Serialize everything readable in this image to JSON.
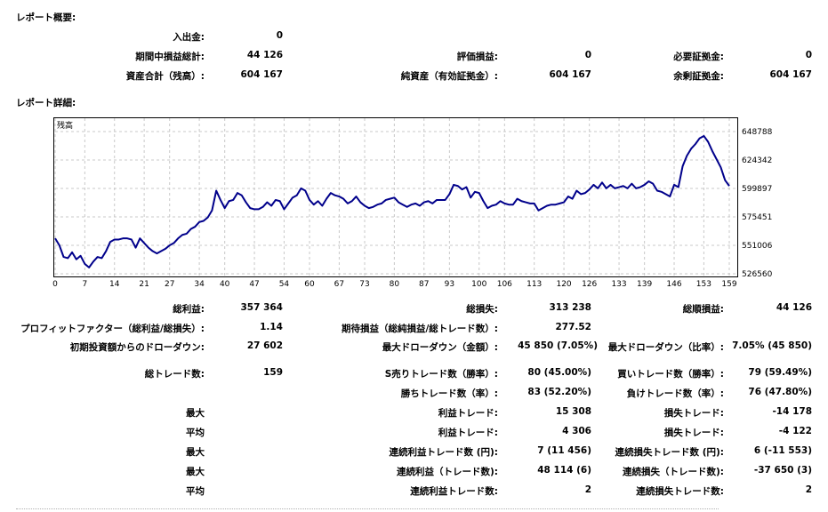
{
  "summary": {
    "title": "レポート概要:",
    "deposit_label": "入出金:",
    "deposit_value": "0",
    "period_pl_label": "期間中損益総計:",
    "period_pl_value": "44 126",
    "eval_pl_label": "評価損益:",
    "eval_pl_value": "0",
    "margin_req_label": "必要証拠金:",
    "margin_req_value": "0",
    "assets_label": "資産合計（残高）:",
    "assets_value": "604 167",
    "net_assets_label": "純資産（有効証拠金）:",
    "net_assets_value": "604 167",
    "free_margin_label": "余剰証拠金:",
    "free_margin_value": "604 167"
  },
  "details": {
    "title": "レポート詳細:"
  },
  "chart_data": {
    "type": "line",
    "title": "残高",
    "x_ticks": [
      "0",
      "7",
      "14",
      "21",
      "27",
      "34",
      "40",
      "47",
      "54",
      "60",
      "67",
      "73",
      "80",
      "87",
      "93",
      "100",
      "106",
      "113",
      "120",
      "126",
      "133",
      "139",
      "146",
      "153",
      "159"
    ],
    "y_ticks": [
      "648788",
      "624342",
      "599897",
      "575451",
      "551006",
      "526560"
    ],
    "ylim": [
      526560,
      648788
    ],
    "xlim": [
      0,
      160
    ],
    "grid": true,
    "line_color": "#00008b",
    "series": [
      {
        "values": [
          557000,
          551000,
          541000,
          540000,
          545000,
          539000,
          542000,
          535000,
          532000,
          537000,
          541000,
          540000,
          546000,
          554000,
          556000,
          556000,
          557000,
          557000,
          556000,
          549000,
          557000,
          553000,
          549000,
          546000,
          544000,
          546000,
          548000,
          551000,
          553000,
          557000,
          560000,
          561000,
          565000,
          567000,
          571000,
          572000,
          575000,
          581000,
          598000,
          590000,
          583000,
          589000,
          590000,
          596000,
          594000,
          588000,
          583000,
          582000,
          582000,
          584000,
          588000,
          585000,
          590000,
          589000,
          582000,
          587000,
          592000,
          594000,
          600000,
          598000,
          590000,
          586000,
          589000,
          585000,
          591000,
          596000,
          594000,
          593000,
          591000,
          587000,
          589000,
          593000,
          588000,
          585000,
          583000,
          584000,
          586000,
          587000,
          590000,
          591000,
          592000,
          588000,
          586000,
          584000,
          586000,
          587000,
          585000,
          588000,
          589000,
          587000,
          590000,
          590000,
          590000,
          595000,
          603000,
          602000,
          599000,
          601000,
          592000,
          597000,
          596000,
          589000,
          583000,
          585000,
          586000,
          589000,
          587000,
          586000,
          586000,
          591000,
          589000,
          588000,
          587000,
          587000,
          581000,
          583000,
          585000,
          586000,
          586000,
          587000,
          588000,
          593000,
          591000,
          598000,
          595000,
          596000,
          599000,
          603000,
          600000,
          605000,
          600000,
          603000,
          600000,
          601000,
          602000,
          600000,
          604000,
          600000,
          601000,
          603000,
          606000,
          604000,
          598000,
          597000,
          595000,
          593000,
          603000,
          601000,
          619000,
          628000,
          634000,
          638000,
          643000,
          645000,
          640000,
          632000,
          625000,
          618000,
          607000,
          602000
        ]
      }
    ]
  },
  "stats": {
    "gross_profit_label": "総利益:",
    "gross_profit_value": "357 364",
    "gross_loss_label": "総損失:",
    "gross_loss_value": "313 238",
    "net_profit_label": "総順損益:",
    "net_profit_value": "44 126",
    "profit_factor_label": "プロフィットファクター（総利益/総損失）:",
    "profit_factor_value": "1.14",
    "expected_payoff_label": "期待損益（総純損益/総トレード数）:",
    "expected_payoff_value": "277.52",
    "dd_initial_label": "初期投資額からのドローダウン:",
    "dd_initial_value": "27 602",
    "max_dd_amount_label": "最大ドローダウン（金額）:",
    "max_dd_amount_value": "45 850 (7.05%)",
    "max_dd_ratio_label": "最大ドローダウン（比率）:",
    "max_dd_ratio_value": "7.05% (45 850)",
    "total_trades_label": "総トレード数:",
    "total_trades_value": "159",
    "short_trades_label": "S売りトレード数（勝率）:",
    "short_trades_value": "80 (45.00%)",
    "long_trades_label": "買いトレード数（勝率）:",
    "long_trades_value": "79 (59.49%)",
    "win_trades_label": "勝ちトレード数（率）:",
    "win_trades_value": "83 (52.20%)",
    "loss_trades_label": "負けトレード数（率）:",
    "loss_trades_value": "76 (47.80%)",
    "max1_label": "最大",
    "largest_win_label": "利益トレード:",
    "largest_win_value": "15 308",
    "largest_loss_label": "損失トレード:",
    "largest_loss_value": "-14 178",
    "avg1_label": "平均",
    "avg_win_label": "利益トレード:",
    "avg_win_value": "4 306",
    "avg_loss_label": "損失トレード:",
    "avg_loss_value": "-4 122",
    "max2_label": "最大",
    "max_consec_wins_label": "連続利益トレード数 (円):",
    "max_consec_wins_value": "7 (11 456)",
    "max_consec_losses_label": "連続損失トレード数 (円):",
    "max_consec_losses_value": "6 (-11 553)",
    "max3_label": "最大",
    "max_consec_profit_label": "連続利益（トレード数):",
    "max_consec_profit_value": "48 114 (6)",
    "max_consec_loss_label": "連続損失（トレード数):",
    "max_consec_loss_value": "-37 650 (3)",
    "avg2_label": "平均",
    "avg_consec_wins_label": "連続利益トレード数:",
    "avg_consec_wins_value": "2",
    "avg_consec_losses_label": "連続損失トレード数:",
    "avg_consec_losses_value": "2"
  }
}
